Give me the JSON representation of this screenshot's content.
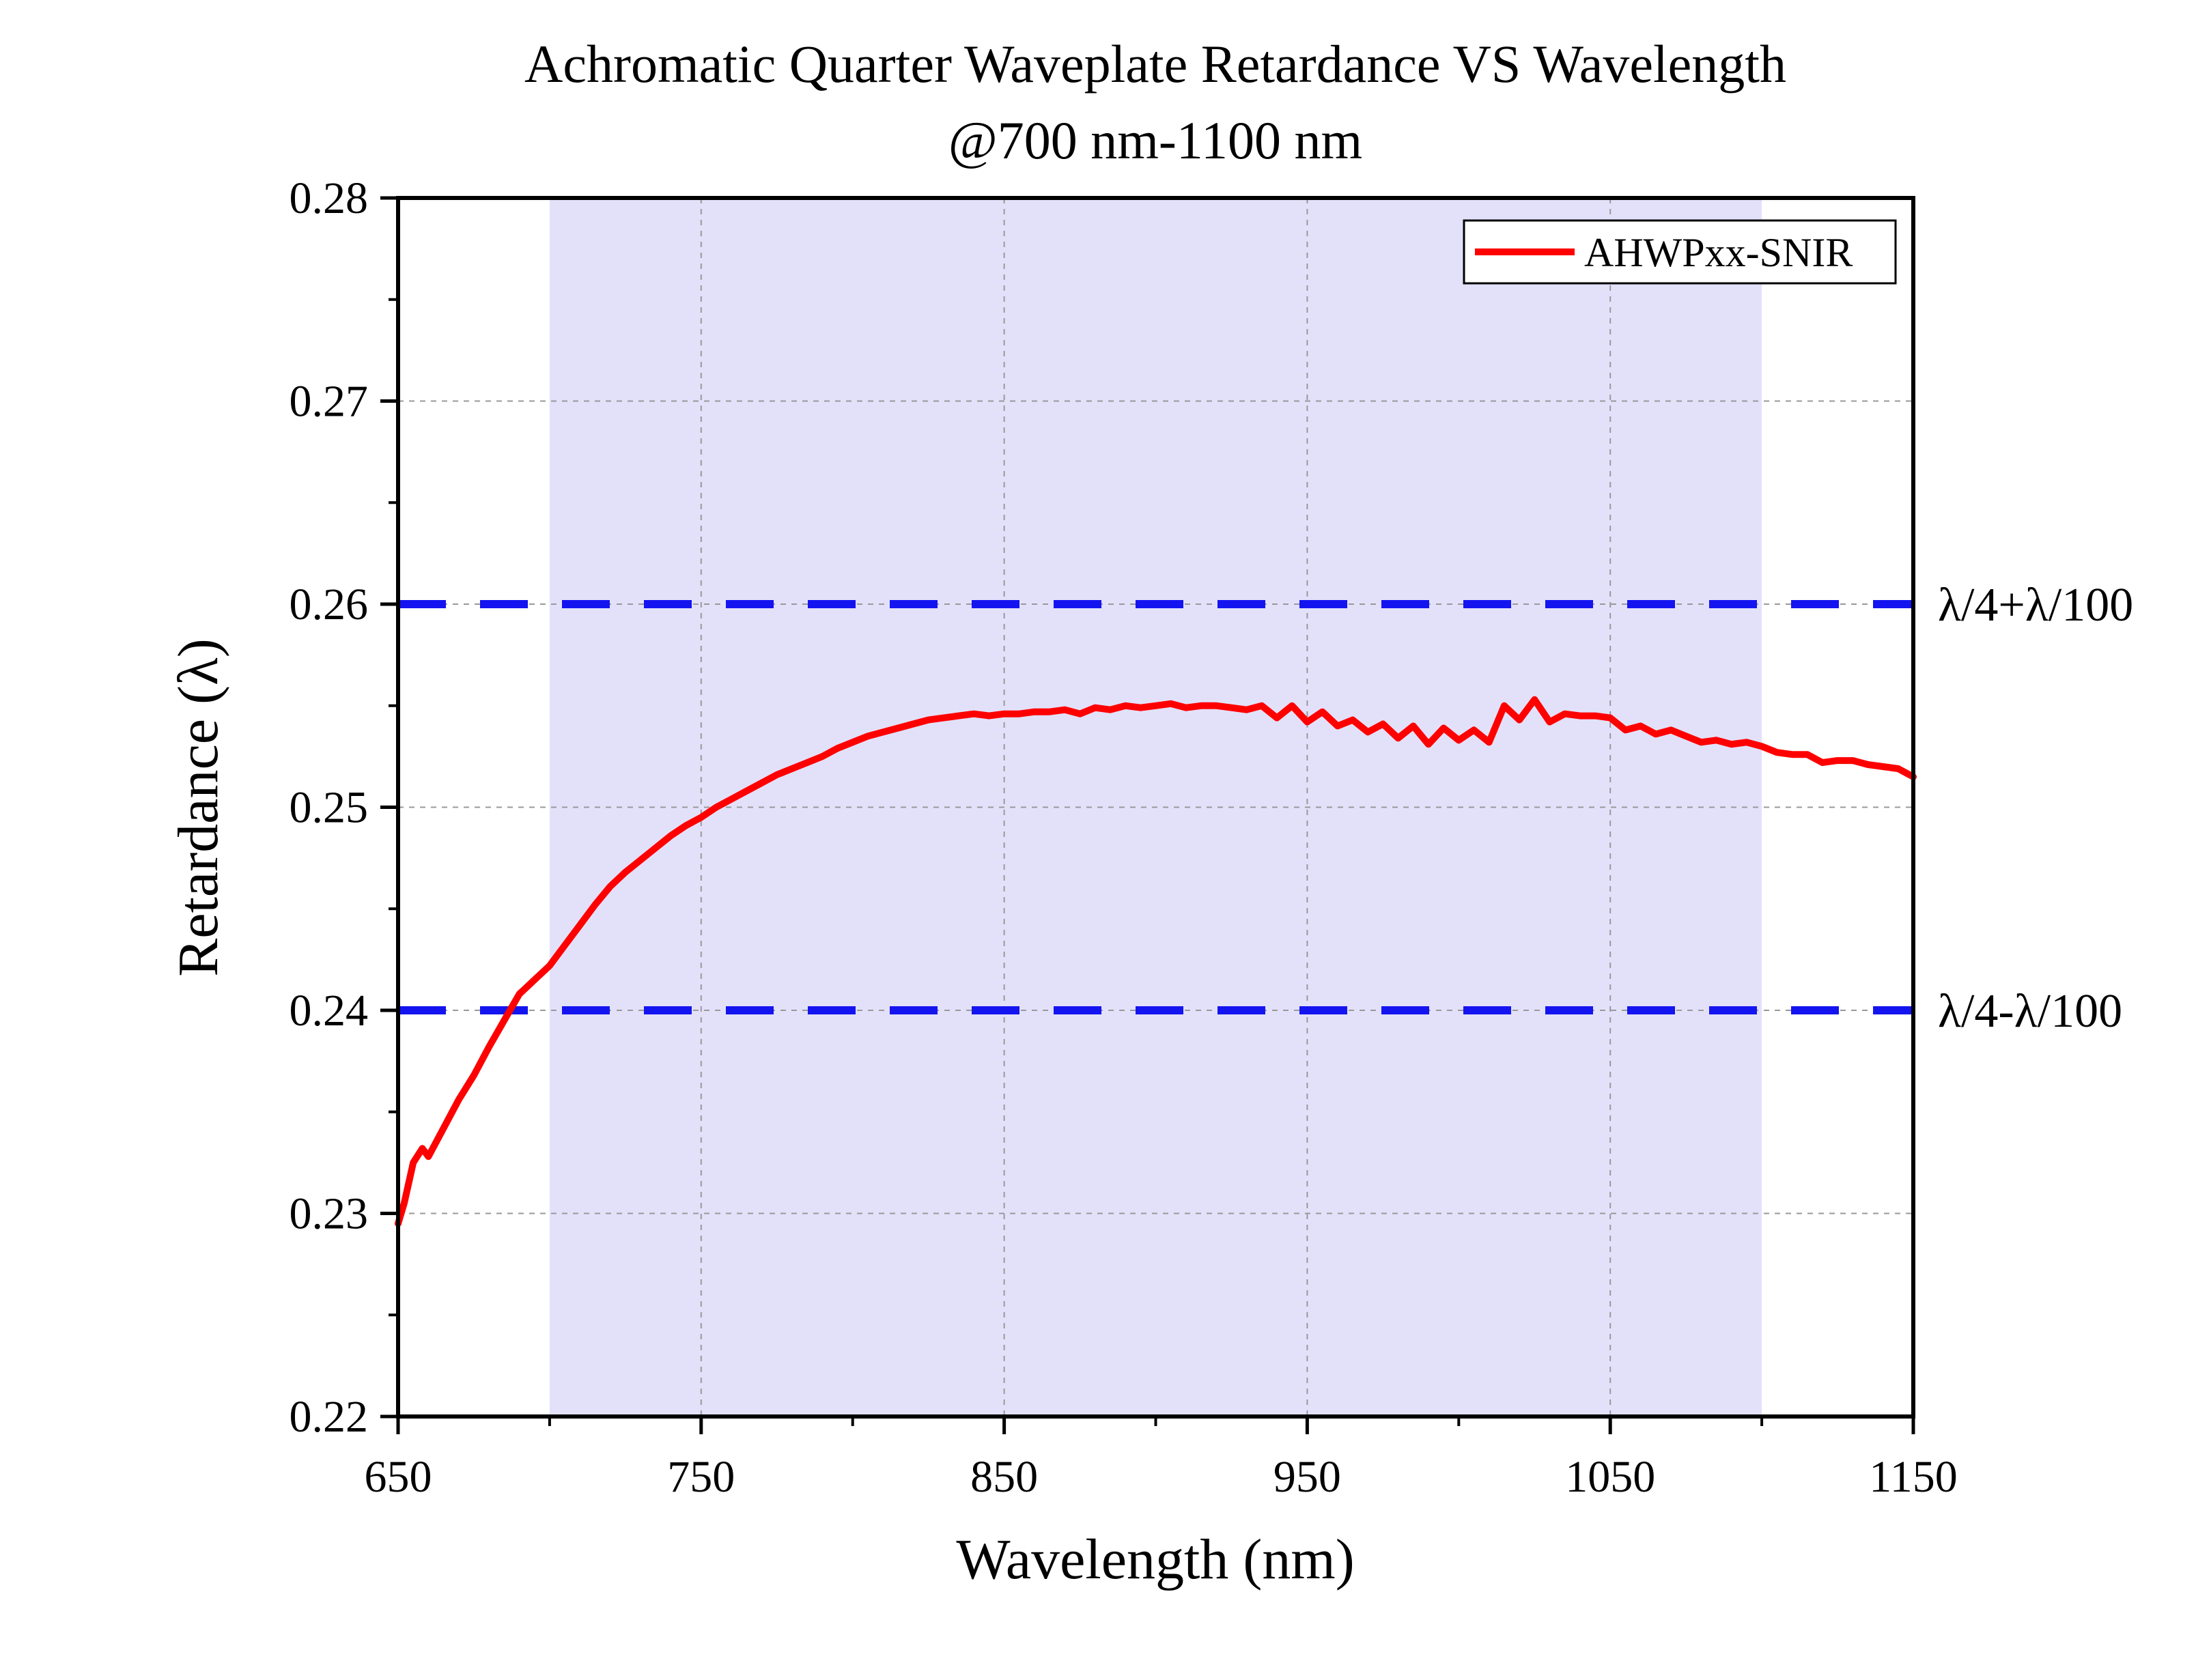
{
  "chart_data": {
    "type": "line",
    "title": "Achromatic Quarter Waveplate Retardance VS Wavelength",
    "subtitle": "@700 nm-1100 nm",
    "xlabel": "Wavelength (nm)",
    "ylabel": "Retardance (λ)",
    "xlim": [
      650,
      1150
    ],
    "ylim": [
      0.22,
      0.28
    ],
    "x_ticks": [
      650,
      750,
      850,
      950,
      1050,
      1150
    ],
    "x_tick_labels": [
      "650",
      "750",
      "850",
      "950",
      "1050",
      "1150"
    ],
    "y_ticks": [
      0.22,
      0.23,
      0.24,
      0.25,
      0.26,
      0.27,
      0.28
    ],
    "y_tick_labels": [
      "0.22",
      "0.23",
      "0.24",
      "0.25",
      "0.26",
      "0.27",
      "0.28"
    ],
    "grid": true,
    "legend_position": "top-right",
    "shaded_band": {
      "x_range": [
        700,
        1100
      ],
      "color": "#e3e1fa"
    },
    "reference_lines": [
      {
        "y": 0.26,
        "label": "λ/4+λ/100",
        "color": "#1414f0",
        "style": "dashed"
      },
      {
        "y": 0.24,
        "label": "λ/4-λ/100",
        "color": "#1414f0",
        "style": "dashed"
      }
    ],
    "series": [
      {
        "name": "AHWPxx-SNIR",
        "color": "#ff0000",
        "x": [
          650,
          652,
          655,
          658,
          660,
          665,
          670,
          675,
          680,
          685,
          690,
          695,
          700,
          705,
          710,
          715,
          720,
          725,
          730,
          735,
          740,
          745,
          750,
          755,
          760,
          765,
          770,
          775,
          780,
          785,
          790,
          795,
          800,
          805,
          810,
          815,
          820,
          825,
          830,
          835,
          840,
          845,
          850,
          855,
          860,
          865,
          870,
          875,
          880,
          885,
          890,
          895,
          900,
          905,
          910,
          915,
          920,
          925,
          930,
          935,
          940,
          945,
          950,
          955,
          960,
          965,
          970,
          975,
          980,
          985,
          990,
          995,
          1000,
          1005,
          1010,
          1015,
          1020,
          1025,
          1030,
          1035,
          1040,
          1045,
          1050,
          1055,
          1060,
          1065,
          1070,
          1075,
          1080,
          1085,
          1090,
          1095,
          1100,
          1105,
          1110,
          1115,
          1120,
          1125,
          1130,
          1135,
          1140,
          1145,
          1150
        ],
        "values": [
          0.2295,
          0.2305,
          0.2325,
          0.2332,
          0.2328,
          0.2342,
          0.2356,
          0.2368,
          0.2382,
          0.2395,
          0.2408,
          0.2415,
          0.2422,
          0.2432,
          0.2442,
          0.2452,
          0.2461,
          0.2468,
          0.2474,
          0.248,
          0.2486,
          0.2491,
          0.2495,
          0.25,
          0.2504,
          0.2508,
          0.2512,
          0.2516,
          0.2519,
          0.2522,
          0.2525,
          0.2529,
          0.2532,
          0.2535,
          0.2537,
          0.2539,
          0.2541,
          0.2543,
          0.2544,
          0.2545,
          0.2546,
          0.2545,
          0.2546,
          0.2546,
          0.2547,
          0.2547,
          0.2548,
          0.2546,
          0.2549,
          0.2548,
          0.255,
          0.2549,
          0.255,
          0.2551,
          0.2549,
          0.255,
          0.255,
          0.2549,
          0.2548,
          0.255,
          0.2544,
          0.255,
          0.2542,
          0.2547,
          0.254,
          0.2543,
          0.2537,
          0.2541,
          0.2534,
          0.254,
          0.2531,
          0.2539,
          0.2533,
          0.2538,
          0.2532,
          0.255,
          0.2543,
          0.2553,
          0.2542,
          0.2546,
          0.2545,
          0.2545,
          0.2544,
          0.2538,
          0.254,
          0.2536,
          0.2538,
          0.2535,
          0.2532,
          0.2533,
          0.2531,
          0.2532,
          0.253,
          0.2527,
          0.2526,
          0.2526,
          0.2522,
          0.2523,
          0.2523,
          0.2521,
          0.252,
          0.2519,
          0.2515
        ]
      }
    ]
  }
}
